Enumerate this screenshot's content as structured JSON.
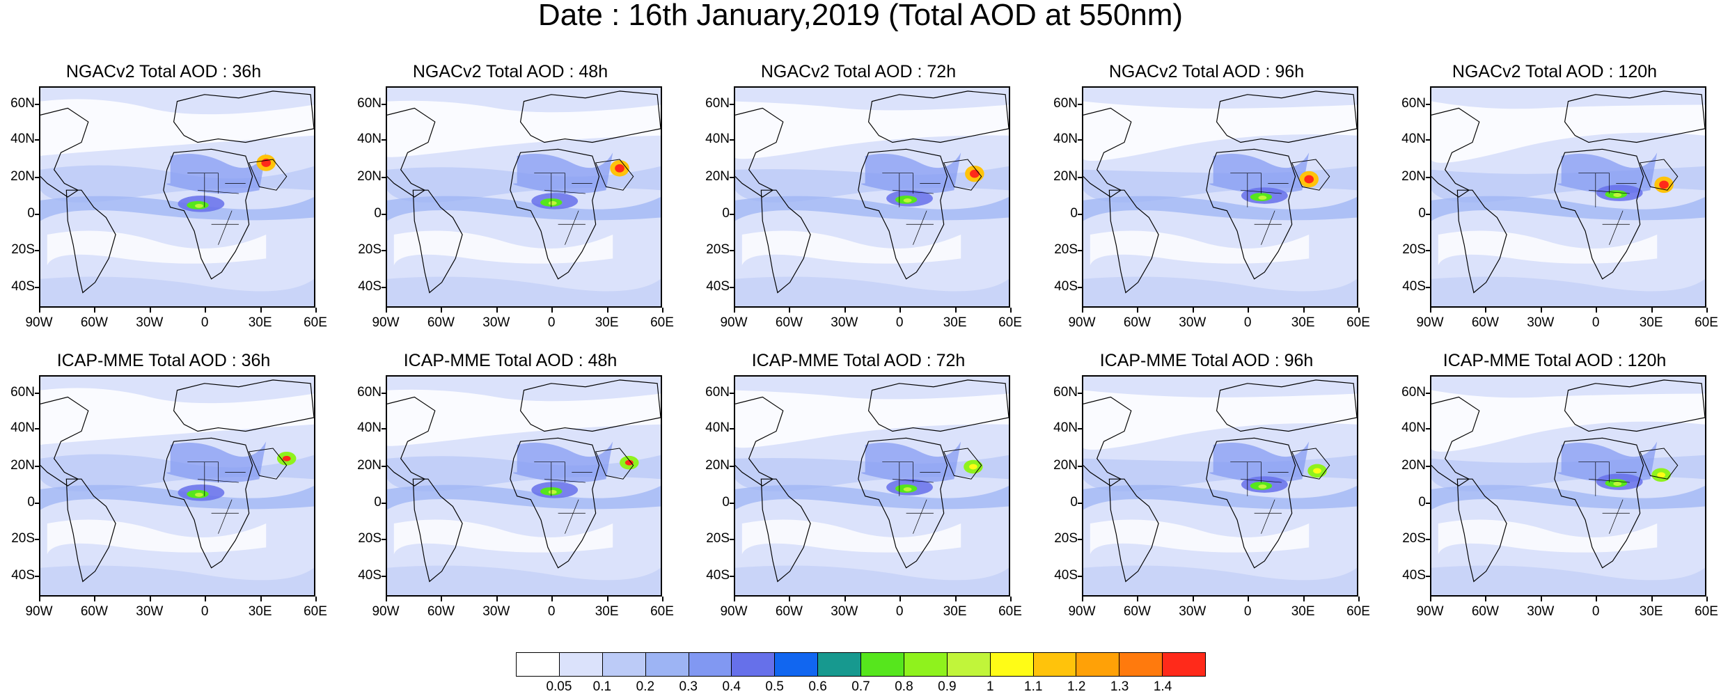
{
  "title": "Date : 16th January,2019 (Total AOD at 550nm)",
  "panels": [
    {
      "title": "NGACv2 Total AOD : 36h",
      "model": "NGACv2",
      "lead": "36h"
    },
    {
      "title": "NGACv2 Total AOD : 48h",
      "model": "NGACv2",
      "lead": "48h"
    },
    {
      "title": "NGACv2 Total AOD : 72h",
      "model": "NGACv2",
      "lead": "72h"
    },
    {
      "title": "NGACv2 Total AOD : 96h",
      "model": "NGACv2",
      "lead": "96h"
    },
    {
      "title": "NGACv2 Total AOD : 120h",
      "model": "NGACv2",
      "lead": "120h"
    },
    {
      "title": "ICAP-MME Total AOD : 36h",
      "model": "ICAP-MME",
      "lead": "36h"
    },
    {
      "title": "ICAP-MME Total AOD : 48h",
      "model": "ICAP-MME",
      "lead": "48h"
    },
    {
      "title": "ICAP-MME Total AOD : 72h",
      "model": "ICAP-MME",
      "lead": "72h"
    },
    {
      "title": "ICAP-MME Total AOD : 96h",
      "model": "ICAP-MME",
      "lead": "96h"
    },
    {
      "title": "ICAP-MME Total AOD : 120h",
      "model": "ICAP-MME",
      "lead": "120h"
    }
  ],
  "lat_labels": [
    "60N",
    "40N",
    "20N",
    "0",
    "20S",
    "40S"
  ],
  "lon_labels": [
    "90W",
    "60W",
    "30W",
    "0",
    "30E",
    "60E"
  ],
  "colorbar": {
    "labels": [
      "0.05",
      "0.1",
      "0.2",
      "0.3",
      "0.4",
      "0.5",
      "0.6",
      "0.7",
      "0.8",
      "0.9",
      "1",
      "1.1",
      "1.2",
      "1.3",
      "1.4"
    ],
    "colors": [
      "#ffffff",
      "#dbe2fb",
      "#bccbf7",
      "#9db4f4",
      "#8198f2",
      "#6670ea",
      "#1166f0",
      "#17998f",
      "#56e61d",
      "#8ff21d",
      "#c1f53a",
      "#fffc16",
      "#ffc30b",
      "#ffa107",
      "#ff7a0d",
      "#ff2a1a"
    ]
  }
}
